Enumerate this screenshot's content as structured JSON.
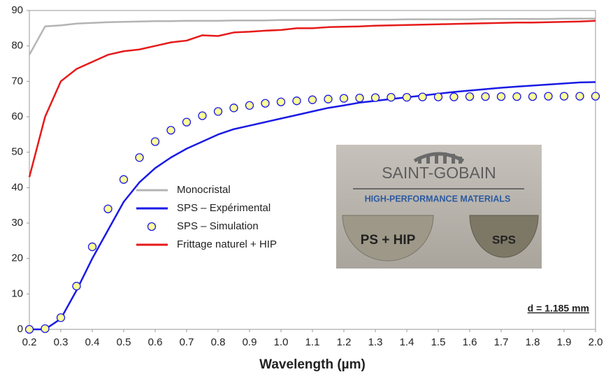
{
  "chart_data": {
    "type": "line",
    "xlabel": "Wavelength (µm)",
    "annotation": "d = 1.185 mm",
    "inset": {
      "logo": "SAINT-GOBAIN",
      "tagline": "HIGH-PERFORMANCE MATERIALS",
      "samples": [
        "PS + HIP",
        "SPS"
      ]
    },
    "x": [
      0.2,
      0.25,
      0.3,
      0.35,
      0.4,
      0.45,
      0.5,
      0.55,
      0.6,
      0.65,
      0.7,
      0.75,
      0.8,
      0.85,
      0.9,
      0.95,
      1.0,
      1.05,
      1.1,
      1.15,
      1.2,
      1.25,
      1.3,
      1.35,
      1.4,
      1.45,
      1.5,
      1.55,
      1.6,
      1.65,
      1.7,
      1.75,
      1.8,
      1.85,
      1.9,
      1.95,
      2.0
    ],
    "series": [
      {
        "name": "Monocristal",
        "color": "#b4b4b4",
        "mode": "line",
        "values": [
          77.5,
          85.5,
          85.8,
          86.3,
          86.5,
          86.7,
          86.8,
          86.9,
          87,
          87,
          87.1,
          87.1,
          87.1,
          87.2,
          87.2,
          87.2,
          87.3,
          87.3,
          87.3,
          87.3,
          87.4,
          87.4,
          87.4,
          87.4,
          87.5,
          87.5,
          87.5,
          87.5,
          87.5,
          87.6,
          87.6,
          87.6,
          87.6,
          87.6,
          87.7,
          87.7,
          87.7
        ]
      },
      {
        "name": "SPS – Expérimental",
        "color": "#1a1ae6",
        "mode": "line",
        "values": [
          0,
          0,
          3,
          11,
          20,
          28,
          36,
          41.5,
          45.5,
          48.5,
          51,
          53,
          55,
          56.5,
          57.5,
          58.5,
          59.5,
          60.5,
          61.5,
          62.5,
          63.2,
          64,
          64.5,
          65,
          65.5,
          66,
          66.5,
          67,
          67.4,
          67.8,
          68.2,
          68.5,
          68.8,
          69.1,
          69.4,
          69.7,
          69.8
        ]
      },
      {
        "name": "SPS – Simulation",
        "color": "#ffff99",
        "mode": "marker",
        "values": [
          0,
          0.2,
          3.3,
          12.2,
          23.3,
          34,
          42.3,
          48.5,
          53,
          56.2,
          58.5,
          60.3,
          61.5,
          62.5,
          63.2,
          63.8,
          64.2,
          64.5,
          64.8,
          65,
          65.2,
          65.3,
          65.4,
          65.5,
          65.5,
          65.6,
          65.6,
          65.6,
          65.7,
          65.7,
          65.7,
          65.7,
          65.7,
          65.8,
          65.8,
          65.8,
          65.8
        ]
      },
      {
        "name": "Frittage naturel + HIP",
        "color": "#e61a1a",
        "mode": "line",
        "values": [
          43,
          60,
          70,
          73.5,
          75.5,
          77.5,
          78.5,
          79,
          80,
          81,
          81.5,
          83,
          82.8,
          83.8,
          84,
          84.3,
          84.5,
          85,
          85,
          85.3,
          85.4,
          85.5,
          85.7,
          85.8,
          85.9,
          86,
          86.1,
          86.2,
          86.3,
          86.4,
          86.5,
          86.6,
          86.6,
          86.7,
          86.8,
          86.9,
          87.1
        ]
      }
    ],
    "xlim": [
      0.2,
      2.0
    ],
    "ylim": [
      0,
      90
    ],
    "xticks": [
      0.2,
      0.3,
      0.4,
      0.5,
      0.6,
      0.7,
      0.8,
      0.9,
      {
        "value": 1.0,
        "label": "1.0"
      },
      1.1,
      1.2,
      1.3,
      1.4,
      1.5,
      1.6,
      1.7,
      1.8,
      1.9,
      {
        "value": 2.0,
        "label": "2.0"
      }
    ],
    "yticks": [
      0,
      10,
      20,
      30,
      40,
      50,
      60,
      70,
      80,
      90
    ],
    "legend": "center left",
    "grid": false
  }
}
